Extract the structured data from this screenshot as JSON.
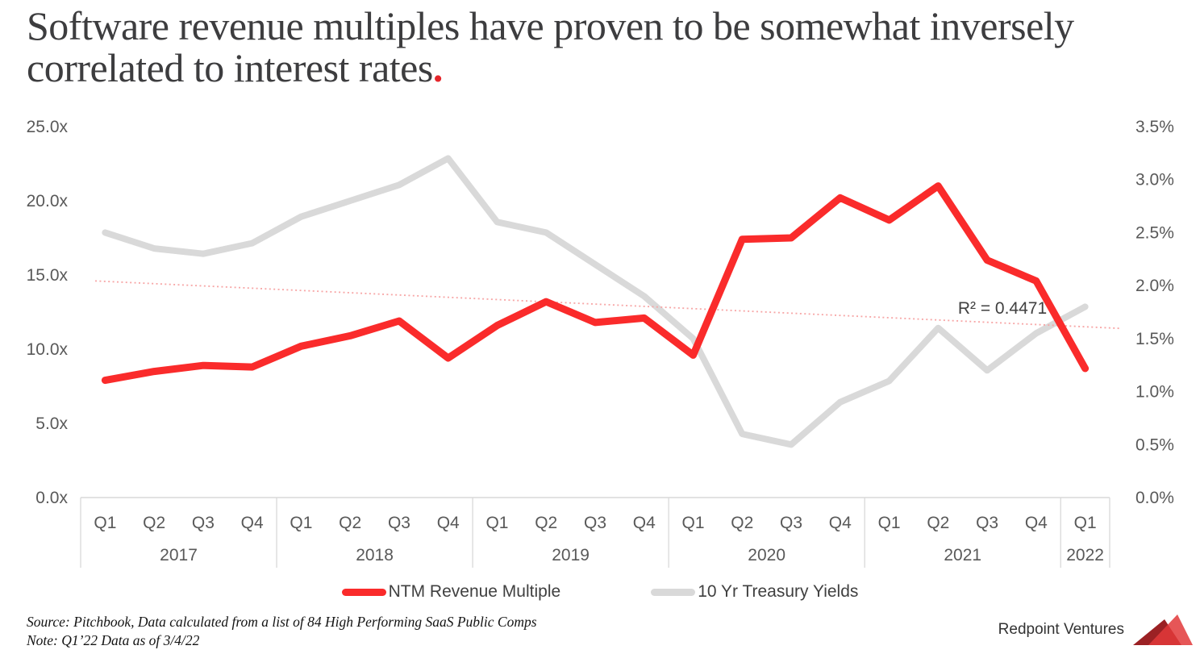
{
  "title": {
    "lines": [
      "Software revenue multiples have proven to be somewhat inversely",
      "correlated to interest rates"
    ],
    "period": "."
  },
  "colors": {
    "accent_red": "#fa2b2b",
    "line_gray": "#d9d9d9",
    "trendline_pink": "#f7a6a6",
    "logo_dark_red": "#9b2124",
    "logo_bright_red": "#e2383a"
  },
  "chart_data": {
    "type": "line",
    "title": "Software revenue multiples vs interest rates",
    "categories": [
      {
        "year": "2017",
        "quarters": [
          "Q1",
          "Q2",
          "Q3",
          "Q4"
        ]
      },
      {
        "year": "2018",
        "quarters": [
          "Q1",
          "Q2",
          "Q3",
          "Q4"
        ]
      },
      {
        "year": "2019",
        "quarters": [
          "Q1",
          "Q2",
          "Q3",
          "Q4"
        ]
      },
      {
        "year": "2020",
        "quarters": [
          "Q1",
          "Q2",
          "Q3",
          "Q4"
        ]
      },
      {
        "year": "2021",
        "quarters": [
          "Q1",
          "Q2",
          "Q3",
          "Q4"
        ]
      },
      {
        "year": "2022",
        "quarters": [
          "Q1"
        ]
      }
    ],
    "series": [
      {
        "name": "NTM Revenue Multiple",
        "axis": "left",
        "color": "#fa2b2b",
        "values": [
          7.9,
          8.5,
          8.9,
          8.8,
          10.2,
          10.9,
          11.9,
          9.4,
          11.6,
          13.2,
          11.8,
          12.1,
          9.6,
          17.4,
          17.5,
          20.2,
          18.7,
          21.0,
          16.0,
          14.6,
          8.7
        ]
      },
      {
        "name": "10 Yr Treasury Yields",
        "axis": "right",
        "color": "#d9d9d9",
        "values": [
          2.5,
          2.35,
          2.3,
          2.4,
          2.65,
          2.8,
          2.95,
          3.2,
          2.6,
          2.5,
          2.2,
          1.9,
          1.5,
          0.6,
          0.5,
          0.9,
          1.1,
          1.6,
          1.2,
          1.55,
          1.8
        ]
      }
    ],
    "left_axis": {
      "ticks": [
        "25.0x",
        "20.0x",
        "15.0x",
        "10.0x",
        "5.0x",
        "0.0x"
      ],
      "min": 0,
      "max": 25
    },
    "right_axis": {
      "ticks": [
        "3.5%",
        "3.0%",
        "2.5%",
        "2.0%",
        "1.5%",
        "1.0%",
        "0.5%",
        "0.0%"
      ],
      "min": 0,
      "max": 3.5
    },
    "trendline": {
      "start": 14.6,
      "end": 11.4,
      "r_squared_label": "R² = 0.4471"
    },
    "grid": false,
    "legend_position": "bottom"
  },
  "legend": [
    {
      "label": "NTM Revenue Multiple"
    },
    {
      "label": "10 Yr Treasury Yields"
    }
  ],
  "footer": {
    "source": "Source: Pitchbook, Data calculated from a list of 84 High Performing SaaS Public Comps",
    "note": "Note: Q1’22 Data as of 3/4/22",
    "brand": "Redpoint Ventures"
  }
}
